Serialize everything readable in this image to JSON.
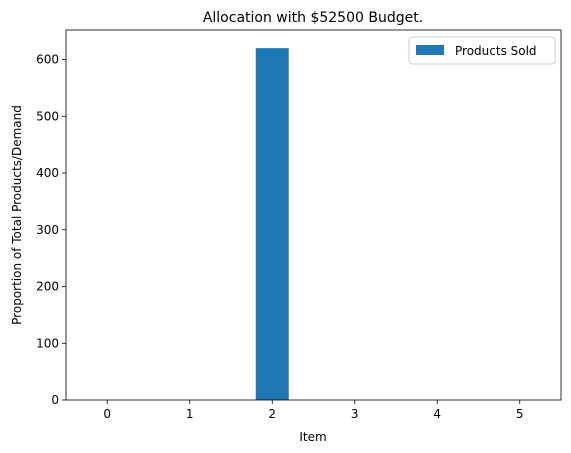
{
  "chart_data": {
    "type": "bar",
    "title": "Allocation with $52500 Budget.",
    "xlabel": "Item",
    "ylabel": "Proportion of Total Products/Demand",
    "categories": [
      "0",
      "1",
      "2",
      "3",
      "4",
      "5"
    ],
    "series": [
      {
        "name": "Products Sold",
        "values": [
          0,
          0,
          620,
          0,
          0,
          0
        ],
        "color": "#1f77b4"
      }
    ],
    "ylim": [
      0,
      652
    ],
    "yticks": [
      "0",
      "100",
      "200",
      "300",
      "400",
      "500",
      "600"
    ],
    "grid": false,
    "legend_position": "top-right"
  }
}
